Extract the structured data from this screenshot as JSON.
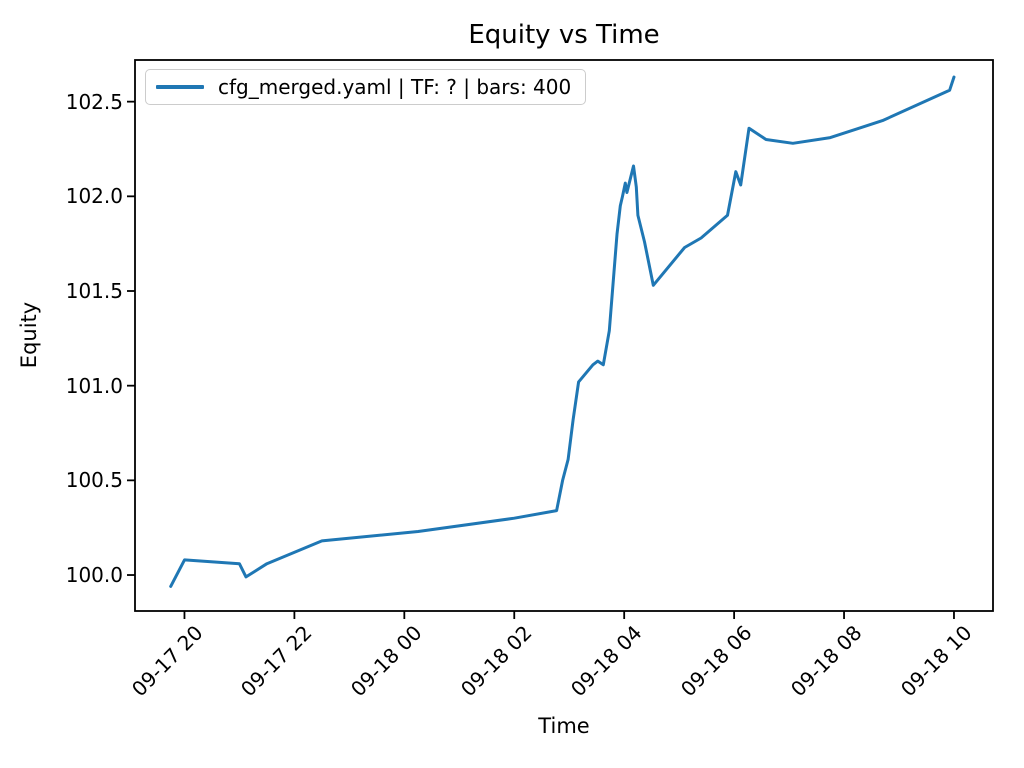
{
  "title": "Equity vs Time",
  "chart_data": {
    "type": "line",
    "title": "Equity vs Time",
    "xlabel": "Time",
    "ylabel": "Equity",
    "legend": [
      "cfg_merged.yaml | TF: ? | bars: 400"
    ],
    "legend_position": "upper left",
    "grid": false,
    "line_color": "#1f77b4",
    "axis_color": "#000000",
    "x_unit": "hours since 09-17 00:00",
    "xlim": [
      19.1,
      34.71
    ],
    "ylim": [
      99.81,
      102.72
    ],
    "x_ticks": [
      {
        "value": 20,
        "label": "09-17 20"
      },
      {
        "value": 22,
        "label": "09-17 22"
      },
      {
        "value": 24,
        "label": "09-18 00"
      },
      {
        "value": 26,
        "label": "09-18 02"
      },
      {
        "value": 28,
        "label": "09-18 04"
      },
      {
        "value": 30,
        "label": "09-18 06"
      },
      {
        "value": 32,
        "label": "09-18 08"
      },
      {
        "value": 34,
        "label": "09-18 10"
      }
    ],
    "y_ticks": [
      {
        "value": 100.0,
        "label": "100.0"
      },
      {
        "value": 100.5,
        "label": "100.5"
      },
      {
        "value": 101.0,
        "label": "101.0"
      },
      {
        "value": 101.5,
        "label": "101.5"
      },
      {
        "value": 102.0,
        "label": "102.0"
      },
      {
        "value": 102.5,
        "label": "102.5"
      }
    ],
    "series": [
      {
        "name": "cfg_merged.yaml | TF: ? | bars: 400",
        "x": [
          19.75,
          20.0,
          21.0,
          21.12,
          21.5,
          22.5,
          24.25,
          26.0,
          26.77,
          26.88,
          26.98,
          27.07,
          27.17,
          27.43,
          27.52,
          27.62,
          27.73,
          27.87,
          27.93,
          27.97,
          28.02,
          28.05,
          28.17,
          28.22,
          28.25,
          28.37,
          28.53,
          29.1,
          29.4,
          29.88,
          30.03,
          30.12,
          30.27,
          30.58,
          31.07,
          31.75,
          32.7,
          33.92,
          34.0
        ],
        "y": [
          99.94,
          100.08,
          100.06,
          99.99,
          100.06,
          100.18,
          100.23,
          100.3,
          100.34,
          100.5,
          100.61,
          100.82,
          101.02,
          101.11,
          101.13,
          101.11,
          101.29,
          101.8,
          101.95,
          102.0,
          102.07,
          102.02,
          102.16,
          102.05,
          101.9,
          101.76,
          101.53,
          101.73,
          101.78,
          101.9,
          102.13,
          102.06,
          102.36,
          102.3,
          102.28,
          102.31,
          102.4,
          102.56,
          102.63
        ]
      }
    ]
  }
}
